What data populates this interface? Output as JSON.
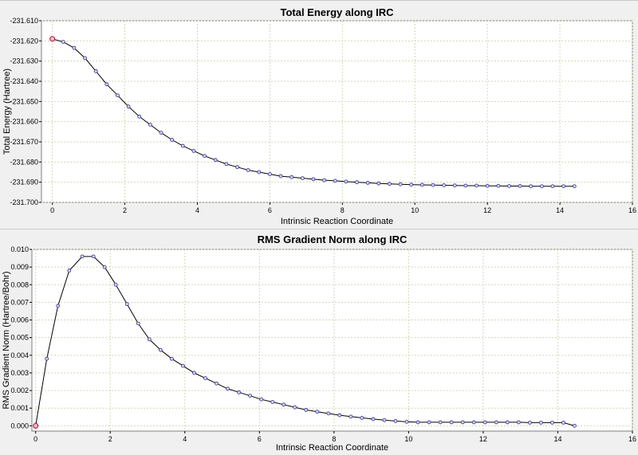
{
  "chart_data": [
    {
      "type": "line",
      "title": "Total Energy along IRC",
      "xlabel": "Intrinsic Reaction Coordinate",
      "ylabel": "Total Energy (Hartree)",
      "xlim": [
        -0.3,
        16
      ],
      "ylim": [
        -231.7,
        -231.61
      ],
      "xticks": [
        0,
        2,
        4,
        6,
        8,
        10,
        12,
        14,
        16
      ],
      "yticks": [
        -231.61,
        -231.62,
        -231.63,
        -231.64,
        -231.65,
        -231.66,
        -231.67,
        -231.68,
        -231.69,
        -231.7
      ],
      "xtick_labels": [
        "0",
        "2",
        "4",
        "6",
        "8",
        "10",
        "12",
        "14",
        "16"
      ],
      "ytick_labels": [
        "-231.610",
        "-231.620",
        "-231.630",
        "-231.640",
        "-231.650",
        "-231.660",
        "-231.670",
        "-231.680",
        "-231.690",
        "-231.700"
      ],
      "grid": true,
      "series": [
        {
          "x": [
            0,
            0.3,
            0.6,
            0.9,
            1.2,
            1.5,
            1.8,
            2.1,
            2.4,
            2.7,
            3.0,
            3.3,
            3.6,
            3.9,
            4.2,
            4.5,
            4.8,
            5.1,
            5.4,
            5.7,
            6.0,
            6.3,
            6.6,
            6.9,
            7.2,
            7.5,
            7.8,
            8.1,
            8.4,
            8.7,
            9.0,
            9.3,
            9.6,
            9.9,
            10.2,
            10.5,
            10.8,
            11.1,
            11.4,
            11.7,
            12.0,
            12.3,
            12.6,
            12.9,
            13.2,
            13.5,
            13.8,
            14.1,
            14.4
          ],
          "y": [
            -231.619,
            -231.6205,
            -231.6235,
            -231.6285,
            -231.635,
            -231.6415,
            -231.647,
            -231.6525,
            -231.6575,
            -231.6615,
            -231.6655,
            -231.669,
            -231.672,
            -231.6745,
            -231.677,
            -231.679,
            -231.681,
            -231.6825,
            -231.684,
            -231.685,
            -231.686,
            -231.687,
            -231.6875,
            -231.688,
            -231.6885,
            -231.689,
            -231.6893,
            -231.6897,
            -231.69,
            -231.6903,
            -231.6906,
            -231.6908,
            -231.691,
            -231.6912,
            -231.6913,
            -231.6914,
            -231.6915,
            -231.6916,
            -231.6917,
            -231.6917,
            -231.6918,
            -231.6918,
            -231.6919,
            -231.6919,
            -231.692,
            -231.692,
            -231.692,
            -231.692,
            -231.692
          ]
        }
      ]
    },
    {
      "type": "line",
      "title": "RMS Gradient Norm along IRC",
      "xlabel": "Intrinsic Reaction Coordinate",
      "ylabel": "RMS Gradient Norm (Hartree/Bohr)",
      "xlim": [
        -0.1,
        16
      ],
      "ylim": [
        -0.0003,
        0.01
      ],
      "xticks": [
        0,
        2,
        4,
        6,
        8,
        10,
        12,
        14,
        16
      ],
      "yticks": [
        0.0,
        0.001,
        0.002,
        0.003,
        0.004,
        0.005,
        0.006,
        0.007,
        0.008,
        0.009,
        0.01
      ],
      "xtick_labels": [
        "0",
        "2",
        "4",
        "6",
        "8",
        "10",
        "12",
        "14",
        "16"
      ],
      "ytick_labels": [
        "0.000",
        "0.001",
        "0.002",
        "0.003",
        "0.004",
        "0.005",
        "0.006",
        "0.007",
        "0.008",
        "0.009",
        "0.010"
      ],
      "grid": true,
      "series": [
        {
          "x": [
            0,
            0.3,
            0.6,
            0.9,
            1.25,
            1.55,
            1.85,
            2.15,
            2.45,
            2.75,
            3.05,
            3.35,
            3.65,
            3.95,
            4.25,
            4.55,
            4.85,
            5.15,
            5.45,
            5.75,
            6.05,
            6.35,
            6.65,
            6.95,
            7.25,
            7.55,
            7.85,
            8.15,
            8.45,
            8.75,
            9.05,
            9.35,
            9.65,
            9.95,
            10.25,
            10.55,
            10.85,
            11.15,
            11.45,
            11.75,
            12.05,
            12.35,
            12.65,
            12.95,
            13.25,
            13.55,
            13.85,
            14.15,
            14.45
          ],
          "y": [
            0.0,
            0.0038,
            0.0068,
            0.0088,
            0.0096,
            0.0096,
            0.009,
            0.008,
            0.0069,
            0.0058,
            0.0049,
            0.0043,
            0.0038,
            0.0034,
            0.003,
            0.0027,
            0.0024,
            0.0021,
            0.0019,
            0.0017,
            0.0015,
            0.00135,
            0.0012,
            0.00105,
            0.0009,
            0.0008,
            0.0007,
            0.0006,
            0.00052,
            0.00045,
            0.00038,
            0.00032,
            0.00027,
            0.00023,
            0.0002,
            0.0002,
            0.0002,
            0.0002,
            0.0002,
            0.0002,
            0.0002,
            0.0002,
            0.0002,
            0.0002,
            0.00018,
            0.00018,
            0.00018,
            0.00018,
            0.0
          ]
        }
      ]
    }
  ]
}
